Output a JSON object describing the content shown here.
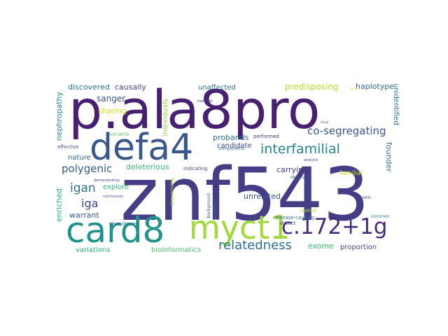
{
  "cloud": {
    "background": "#ffffff",
    "words": [
      {
        "text": "znf543",
        "color": "#433e85"
      },
      {
        "text": "p.ala8pro",
        "color": "#482071"
      },
      {
        "text": "defa4",
        "color": "#38588c"
      },
      {
        "text": "card8",
        "color": "#1f948c"
      },
      {
        "text": "myct1",
        "color": "#9fda3a"
      },
      {
        "text": "c.172+1g",
        "color": "#472c7a"
      },
      {
        "text": "interfamilial",
        "color": "#25858e"
      },
      {
        "text": "relatedness",
        "color": "#2e6e8e"
      },
      {
        "text": "co-segregating",
        "color": "#39568c"
      },
      {
        "text": "polygenic",
        "color": "#38598c"
      },
      {
        "text": "igan",
        "color": "#2c718e"
      },
      {
        "text": "iga",
        "color": "#404688"
      },
      {
        "text": "sanger",
        "color": "#3b528b"
      },
      {
        "text": "causally",
        "color": "#3e4989"
      },
      {
        "text": "discovered",
        "color": "#2a788e"
      },
      {
        "text": "unaffected",
        "color": "#2c728e"
      },
      {
        "text": "predisposing",
        "color": "#b5de2b"
      },
      {
        "text": "haplotype",
        "color": "#31688e"
      },
      {
        "text": "nephropathy",
        "color": "#24868e"
      },
      {
        "text": "sharing",
        "color": "#d2e21b"
      },
      {
        "text": "individuals",
        "color": "#90d743"
      },
      {
        "text": "probands",
        "color": "#2d718e"
      },
      {
        "text": "candidate",
        "color": "#3f4788"
      },
      {
        "text": "unidentified",
        "color": "#2a778e"
      },
      {
        "text": "deleterious",
        "color": "#3bbb75"
      },
      {
        "text": "nature",
        "color": "#31688e"
      },
      {
        "text": "explore",
        "color": "#2fb47c"
      },
      {
        "text": "warrant",
        "color": "#34618d"
      },
      {
        "text": "carrying",
        "color": "#453781"
      },
      {
        "text": "familial",
        "color": "#cde11d"
      },
      {
        "text": "founder",
        "color": "#2c728e"
      },
      {
        "text": "unrelated",
        "color": "#3b528b"
      },
      {
        "text": "enriched",
        "color": "#29af7f"
      },
      {
        "text": "exome",
        "color": "#3dbc74"
      },
      {
        "text": "proportion",
        "color": "#3e4a89"
      },
      {
        "text": "variations",
        "color": "#26ad81"
      },
      {
        "text": "bioinformatics",
        "color": "#4ac16d"
      },
      {
        "text": "effective",
        "color": "#3b528b"
      },
      {
        "text": "variants",
        "color": "#5ec962"
      },
      {
        "text": "performed",
        "color": "#46337e"
      },
      {
        "text": "components",
        "color": "#355f8d"
      },
      {
        "text": "indicating",
        "color": "#404588"
      },
      {
        "text": "sequencing",
        "color": "#a2da37"
      },
      {
        "text": "demonstrating",
        "color": "#3e4989"
      },
      {
        "text": "conclusions",
        "color": "#3b528b"
      },
      {
        "text": "phenotypes",
        "color": "#2e6f8e"
      },
      {
        "text": "background",
        "color": "#39568c"
      },
      {
        "text": "analyses",
        "color": "#33638d"
      },
      {
        "text": "detect",
        "color": "#3f4889"
      },
      {
        "text": "disease-causing",
        "color": "#2b748e"
      },
      {
        "text": "common",
        "color": "#287c8e"
      },
      {
        "text": "tested",
        "color": "#b5de2b"
      },
      {
        "text": "genetic",
        "color": "#414487"
      },
      {
        "text": "observed",
        "color": "#3e4c8a"
      },
      {
        "text": "analysis",
        "color": "#3b528b"
      },
      {
        "text": "methods",
        "color": "#443983"
      },
      {
        "text": "study",
        "color": "#3e4989"
      },
      {
        "text": "goal",
        "color": "#c2df23"
      }
    ]
  }
}
